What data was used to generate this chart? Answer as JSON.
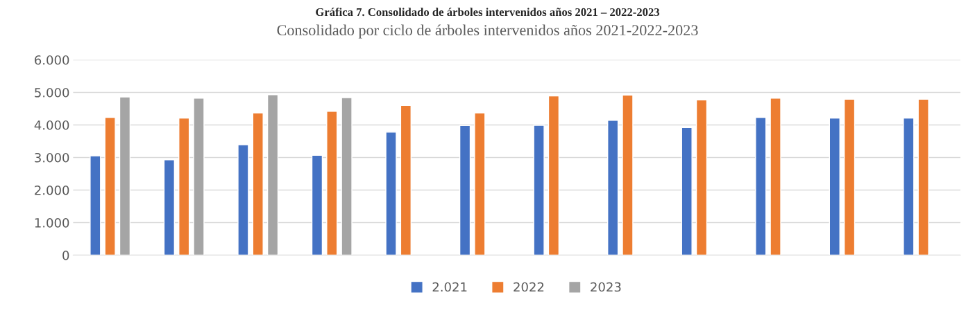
{
  "chart_data": {
    "type": "bar",
    "title": "Gráfica 7. Consolidado de árboles intervenidos años 2021 – 2022-2023",
    "subtitle": "Consolidado por ciclo de árboles intervenidos años 2021-2022-2023",
    "categories": [
      null,
      null,
      null,
      null,
      null,
      null,
      null,
      null,
      null,
      null,
      null,
      null
    ],
    "series": [
      {
        "name": "2.021",
        "color": "#4472c4",
        "values": [
          3050,
          2930,
          3390,
          3070,
          3780,
          3980,
          3990,
          4140,
          3920,
          4230,
          4210,
          4210
        ]
      },
      {
        "name": "2022",
        "color": "#ed7d31",
        "values": [
          4230,
          4210,
          4370,
          4420,
          4600,
          4370,
          4890,
          4920,
          4770,
          4820,
          4790,
          4790
        ]
      },
      {
        "name": "2023",
        "color": "#a5a5a5",
        "values": [
          4860,
          4820,
          4930,
          4840,
          null,
          null,
          null,
          null,
          null,
          null,
          null,
          null
        ]
      }
    ],
    "ylim": [
      0,
      6000
    ],
    "yticks": [
      {
        "value": 0,
        "label": "0"
      },
      {
        "value": 1000,
        "label": "1.000"
      },
      {
        "value": 2000,
        "label": "2.000"
      },
      {
        "value": 3000,
        "label": "3.000"
      },
      {
        "value": 4000,
        "label": "4.000"
      },
      {
        "value": 5000,
        "label": "5.000"
      },
      {
        "value": 6000,
        "label": "6.000"
      }
    ],
    "grid": "y",
    "legend": "bottom"
  }
}
